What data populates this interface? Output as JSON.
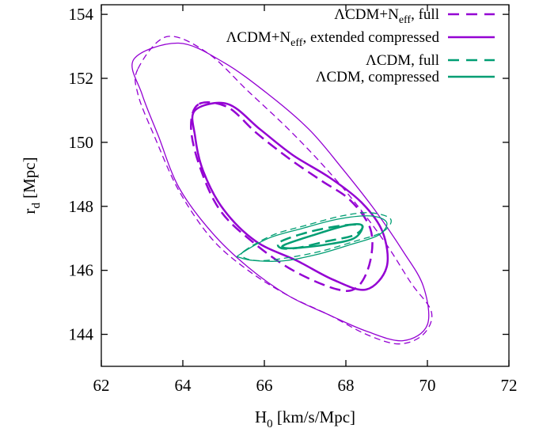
{
  "chart_data": {
    "type": "contour",
    "xlabel": {
      "main": "H",
      "sub": "0",
      "rest": " [km/s/Mpc]"
    },
    "ylabel": {
      "main": "r",
      "sub": "d",
      "rest": " [Mpc]"
    },
    "xlim": [
      62,
      72
    ],
    "ylim": [
      143,
      154.3
    ],
    "xticks": [
      "62",
      "64",
      "66",
      "68",
      "70",
      "72"
    ],
    "yticks": [
      "144",
      "146",
      "148",
      "150",
      "152",
      "154"
    ],
    "grid": false,
    "legend_position": "top-right",
    "legend": [
      {
        "text_pre": "ΛCDM+N",
        "text_sub": "eff",
        "text_post": ", full",
        "color": "#9400d3",
        "dashed": true
      },
      {
        "text_pre": "ΛCDM+N",
        "text_sub": "eff",
        "text_post": ", extended compressed",
        "color": "#9400d3",
        "dashed": false
      },
      {
        "text_pre": "ΛCDM, full",
        "text_sub": "",
        "text_post": "",
        "color": "#009e73",
        "dashed": true
      },
      {
        "text_pre": "ΛCDM, compressed",
        "text_sub": "",
        "text_post": "",
        "color": "#009e73",
        "dashed": false
      }
    ],
    "series": [
      {
        "name": "ΛCDM+Neff, full",
        "color": "#9400d3",
        "dashed": true,
        "contours": [
          {
            "level": "outer",
            "width": 1.3,
            "points": [
              [
                62.9,
                152.3
              ],
              [
                63.6,
                153.3
              ],
              [
                64.6,
                152.8
              ],
              [
                65.6,
                151.6
              ],
              [
                66.6,
                150.4
              ],
              [
                67.5,
                149.2
              ],
              [
                68.3,
                148.0
              ],
              [
                69.0,
                146.8
              ],
              [
                69.6,
                145.6
              ],
              [
                70.1,
                144.7
              ],
              [
                69.9,
                144.0
              ],
              [
                69.3,
                143.7
              ],
              [
                68.5,
                144.0
              ],
              [
                67.6,
                144.6
              ],
              [
                66.6,
                145.2
              ],
              [
                65.6,
                146.0
              ],
              [
                64.7,
                147.0
              ],
              [
                63.9,
                148.5
              ],
              [
                63.3,
                150.2
              ],
              [
                62.9,
                151.5
              ]
            ]
          },
          {
            "level": "inner",
            "width": 2.5,
            "points": [
              [
                64.4,
                151.2
              ],
              [
                65.1,
                151.1
              ],
              [
                65.8,
                150.3
              ],
              [
                66.6,
                149.5
              ],
              [
                67.4,
                148.8
              ],
              [
                68.1,
                148.2
              ],
              [
                68.6,
                147.3
              ],
              [
                68.6,
                146.3
              ],
              [
                68.3,
                145.5
              ],
              [
                67.8,
                145.4
              ],
              [
                66.7,
                146.0
              ],
              [
                65.7,
                146.9
              ],
              [
                64.9,
                147.9
              ],
              [
                64.4,
                149.3
              ],
              [
                64.2,
                150.5
              ]
            ]
          }
        ]
      },
      {
        "name": "ΛCDM+Neff, extended compressed",
        "color": "#9400d3",
        "dashed": false,
        "contours": [
          {
            "level": "outer",
            "width": 1.3,
            "points": [
              [
                62.8,
                152.6
              ],
              [
                63.9,
                153.1
              ],
              [
                65.0,
                152.5
              ],
              [
                66.1,
                151.5
              ],
              [
                67.1,
                150.4
              ],
              [
                67.9,
                149.2
              ],
              [
                68.7,
                147.9
              ],
              [
                69.4,
                146.6
              ],
              [
                69.9,
                145.5
              ],
              [
                70.0,
                144.3
              ],
              [
                69.4,
                143.8
              ],
              [
                68.5,
                144.1
              ],
              [
                67.6,
                144.6
              ],
              [
                66.6,
                145.2
              ],
              [
                65.6,
                146.1
              ],
              [
                64.7,
                147.2
              ],
              [
                63.9,
                148.6
              ],
              [
                63.4,
                150.2
              ],
              [
                63.0,
                151.5
              ]
            ]
          },
          {
            "level": "inner",
            "width": 2.5,
            "points": [
              [
                64.3,
                151.0
              ],
              [
                65.1,
                151.2
              ],
              [
                65.9,
                150.4
              ],
              [
                66.7,
                149.6
              ],
              [
                67.6,
                148.9
              ],
              [
                68.4,
                148.1
              ],
              [
                68.9,
                147.2
              ],
              [
                69.0,
                146.1
              ],
              [
                68.5,
                145.4
              ],
              [
                67.7,
                145.7
              ],
              [
                66.8,
                146.3
              ],
              [
                65.8,
                146.9
              ],
              [
                65.0,
                147.9
              ],
              [
                64.5,
                149.1
              ],
              [
                64.3,
                150.2
              ]
            ]
          }
        ]
      },
      {
        "name": "ΛCDM, full",
        "color": "#009e73",
        "dashed": true,
        "contours": [
          {
            "level": "outer",
            "width": 1.3,
            "points": [
              [
                65.5,
                146.6
              ],
              [
                66.2,
                147.1
              ],
              [
                67.0,
                147.4
              ],
              [
                67.9,
                147.7
              ],
              [
                68.6,
                147.8
              ],
              [
                69.1,
                147.6
              ],
              [
                68.9,
                147.2
              ],
              [
                68.2,
                146.9
              ],
              [
                67.4,
                146.6
              ],
              [
                66.6,
                146.4
              ],
              [
                65.9,
                146.3
              ],
              [
                65.5,
                146.4
              ]
            ]
          },
          {
            "level": "inner",
            "width": 2.5,
            "points": [
              [
                66.4,
                146.9
              ],
              [
                67.1,
                147.2
              ],
              [
                67.9,
                147.4
              ],
              [
                68.4,
                147.4
              ],
              [
                68.2,
                147.1
              ],
              [
                67.5,
                146.9
              ],
              [
                66.8,
                146.7
              ],
              [
                66.4,
                146.7
              ]
            ]
          }
        ]
      },
      {
        "name": "ΛCDM, compressed",
        "color": "#009e73",
        "dashed": false,
        "contours": [
          {
            "level": "outer",
            "width": 1.3,
            "points": [
              [
                65.4,
                146.5
              ],
              [
                66.1,
                147.0
              ],
              [
                66.9,
                147.3
              ],
              [
                67.8,
                147.6
              ],
              [
                68.6,
                147.7
              ],
              [
                69.0,
                147.5
              ],
              [
                68.8,
                147.1
              ],
              [
                68.1,
                146.8
              ],
              [
                67.3,
                146.5
              ],
              [
                66.5,
                146.3
              ],
              [
                65.8,
                146.3
              ],
              [
                65.4,
                146.4
              ]
            ]
          },
          {
            "level": "inner",
            "width": 2.5,
            "points": [
              [
                66.5,
                146.8
              ],
              [
                67.2,
                147.1
              ],
              [
                68.0,
                147.4
              ],
              [
                68.4,
                147.4
              ],
              [
                68.2,
                147.0
              ],
              [
                67.5,
                146.8
              ],
              [
                66.8,
                146.7
              ],
              [
                66.5,
                146.7
              ]
            ]
          }
        ]
      }
    ]
  }
}
